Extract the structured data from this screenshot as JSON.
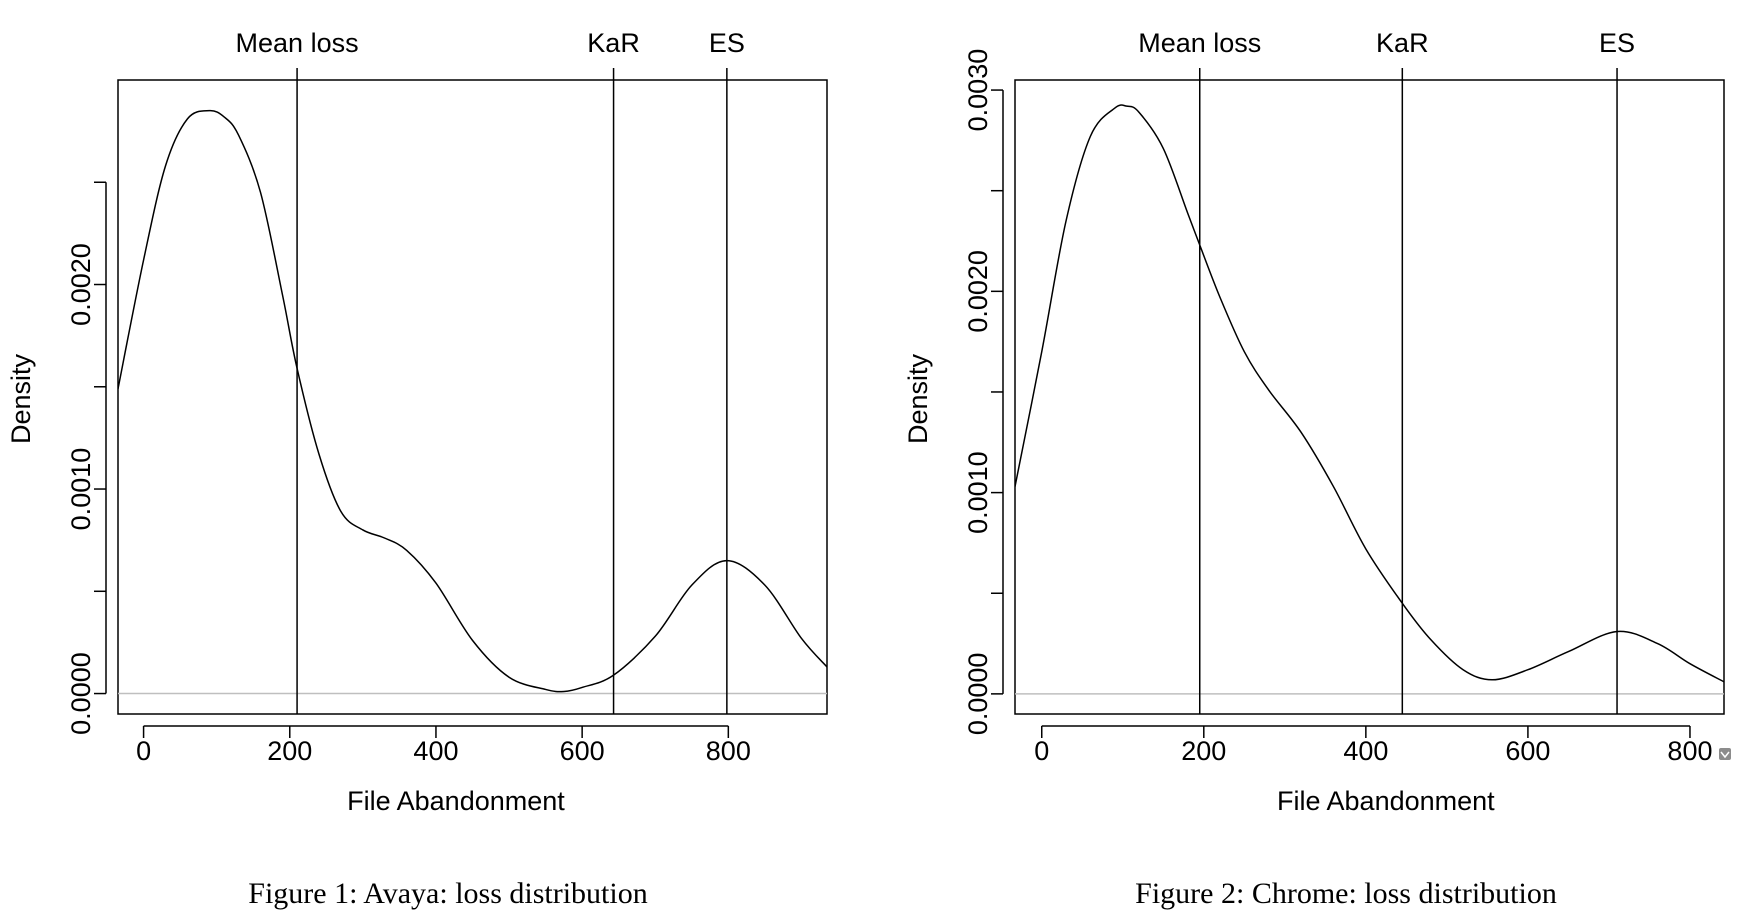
{
  "colors": {
    "line": "#000000",
    "zero_line": "#bfbfbf",
    "background": "#ffffff",
    "corner_icon": "#8c8c8c"
  },
  "chart_data": [
    {
      "type": "line",
      "title": "",
      "xlabel": "File Abandonment",
      "ylabel": "Density",
      "caption": "Figure 1: Avaya: loss distribution",
      "xlim": [
        -35,
        935
      ],
      "ylim": [
        -0.0001,
        0.003
      ],
      "xticks": [
        0,
        200,
        400,
        600,
        800
      ],
      "xtick_labels": [
        "0",
        "200",
        "400",
        "600",
        "800"
      ],
      "yticks": [
        0,
        0.0005,
        0.001,
        0.0015,
        0.002,
        0.0025
      ],
      "ytick_labels": [
        "0.0000",
        "",
        "0.0010",
        "",
        "0.0020",
        ""
      ],
      "zero_line": true,
      "markers": [
        {
          "label": "Mean loss",
          "x": 210
        },
        {
          "label": "KaR",
          "x": 643
        },
        {
          "label": "ES",
          "x": 798
        }
      ],
      "series": [
        {
          "x": [
            -35,
            0,
            30,
            60,
            90,
            110,
            130,
            160,
            190,
            210,
            240,
            270,
            300,
            330,
            360,
            400,
            450,
            500,
            550,
            575,
            600,
            643,
            700,
            750,
            798,
            850,
            900,
            935
          ],
          "values": [
            0.00149,
            0.00212,
            0.00258,
            0.00281,
            0.00285,
            0.00282,
            0.00273,
            0.00245,
            0.00195,
            0.00159,
            0.00117,
            0.00089,
            0.0008,
            0.00076,
            0.0007,
            0.00054,
            0.00026,
            8e-05,
            2e-05,
            1e-05,
            3e-05,
            9e-05,
            0.00028,
            0.00053,
            0.00065,
            0.00053,
            0.00027,
            0.00013
          ]
        }
      ]
    },
    {
      "type": "line",
      "title": "",
      "xlabel": "File Abandonment",
      "ylabel": "Density",
      "caption": "Figure 2: Chrome: loss distribution",
      "xlim": [
        -33,
        842
      ],
      "ylim": [
        -0.0001,
        0.00305
      ],
      "xticks": [
        0,
        200,
        400,
        600,
        800
      ],
      "xtick_labels": [
        "0",
        "200",
        "400",
        "600",
        "800"
      ],
      "yticks": [
        0,
        0.0005,
        0.001,
        0.0015,
        0.002,
        0.0025,
        0.003
      ],
      "ytick_labels": [
        "0.0000",
        "",
        "0.0010",
        "",
        "0.0020",
        "",
        "0.0030"
      ],
      "zero_line": true,
      "markers": [
        {
          "label": "Mean loss",
          "x": 195
        },
        {
          "label": "KaR",
          "x": 445
        },
        {
          "label": "ES",
          "x": 710
        }
      ],
      "series": [
        {
          "x": [
            -33,
            0,
            30,
            60,
            90,
            105,
            120,
            150,
            180,
            195,
            220,
            250,
            280,
            320,
            360,
            400,
            445,
            480,
            520,
            556,
            600,
            650,
            710,
            760,
            800,
            842
          ],
          "values": [
            0.00103,
            0.0017,
            0.00235,
            0.00277,
            0.00291,
            0.00292,
            0.00289,
            0.00271,
            0.00239,
            0.00223,
            0.00197,
            0.0017,
            0.00151,
            0.0013,
            0.00103,
            0.00072,
            0.00045,
            0.00027,
            0.00012,
            7e-05,
            0.00012,
            0.00021,
            0.00031,
            0.00025,
            0.00015,
            6e-05
          ]
        }
      ]
    }
  ]
}
